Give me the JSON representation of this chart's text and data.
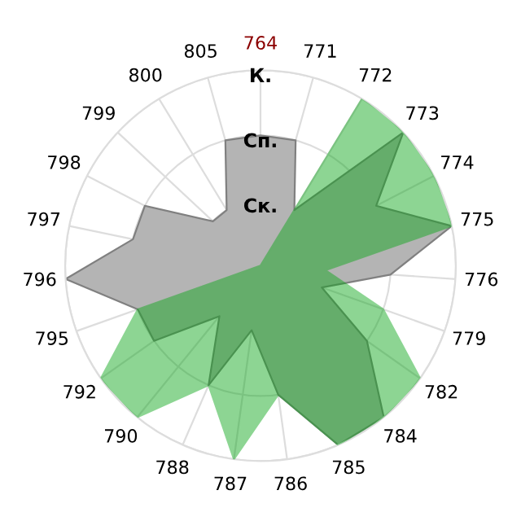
{
  "chart_data": {
    "type": "radar",
    "categories": [
      "764",
      "771",
      "772",
      "773",
      "774",
      "775",
      "776",
      "779",
      "782",
      "784",
      "785",
      "786",
      "787",
      "788",
      "790",
      "792",
      "795",
      "796",
      "797",
      "798",
      "799",
      "800",
      "805"
    ],
    "series": [
      {
        "color": "#b4b4b4",
        "values": [
          2,
          2,
          1,
          3,
          2,
          3,
          2,
          1,
          2,
          3,
          3,
          2,
          1,
          2,
          1,
          2,
          2,
          3,
          2,
          2,
          1,
          1,
          2
        ]
      },
      {
        "color": "#0da71a",
        "values": [
          0,
          0,
          3,
          3,
          3,
          3,
          1,
          2,
          3,
          3,
          3,
          2,
          3,
          2,
          3,
          3,
          2,
          0,
          0,
          0,
          0,
          0,
          0
        ]
      }
    ],
    "ylim": [
      0,
      3
    ],
    "yticks": [
      {
        "value": 1,
        "label": "Ск."
      },
      {
        "value": 2,
        "label": "Сп."
      },
      {
        "value": 3,
        "label": "К."
      }
    ],
    "grid": true,
    "legend": false
  }
}
